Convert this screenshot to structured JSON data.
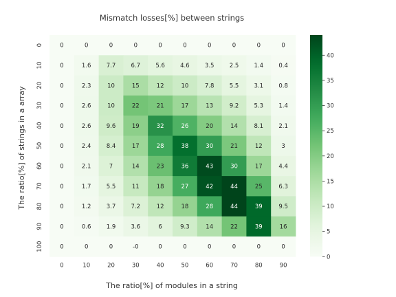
{
  "chart_data": {
    "type": "heatmap",
    "title": "Mismatch losses[%] between strings",
    "xlabel": "The ratio[%] of modules in a string",
    "ylabel": "The ratio[%] of strings in a array",
    "x_categories": [
      "0",
      "10",
      "20",
      "30",
      "40",
      "50",
      "60",
      "70",
      "80",
      "90"
    ],
    "y_categories": [
      "0",
      "10",
      "20",
      "30",
      "40",
      "50",
      "60",
      "70",
      "80",
      "90",
      "100"
    ],
    "values": [
      [
        0,
        0,
        0,
        0,
        0,
        0,
        0,
        0,
        0,
        0
      ],
      [
        0,
        1.6,
        7.7,
        6.7,
        5.6,
        4.6,
        3.5,
        2.5,
        1.4,
        0.4
      ],
      [
        0,
        2.3,
        10,
        15,
        12,
        10,
        7.8,
        5.5,
        3.1,
        0.8
      ],
      [
        0,
        2.6,
        10,
        22,
        21,
        17,
        13,
        9.2,
        5.3,
        1.4
      ],
      [
        0,
        2.6,
        9.6,
        19,
        32,
        26,
        20,
        14,
        8.1,
        2.1
      ],
      [
        0,
        2.4,
        8.4,
        17,
        28,
        38,
        30,
        21,
        12,
        3
      ],
      [
        0,
        2.1,
        7,
        14,
        23,
        36,
        43,
        30,
        17,
        4.4
      ],
      [
        0,
        1.7,
        5.5,
        11,
        18,
        27,
        42,
        44,
        25,
        6.3
      ],
      [
        0,
        1.2,
        3.7,
        7.2,
        12,
        18,
        28,
        44,
        39,
        9.5
      ],
      [
        0,
        0.6,
        1.9,
        3.6,
        6,
        9.3,
        14,
        22,
        39,
        16
      ],
      [
        0,
        0,
        0,
        "-0",
        0,
        0,
        0,
        0,
        0,
        0
      ]
    ],
    "colormap": "Greens",
    "vmin": 0,
    "vmax": 44,
    "colorbar_ticks": [
      0,
      5,
      10,
      15,
      20,
      25,
      30,
      35,
      40
    ],
    "colors": {
      "low": "#f7fcf5",
      "high": "#00441b"
    }
  }
}
